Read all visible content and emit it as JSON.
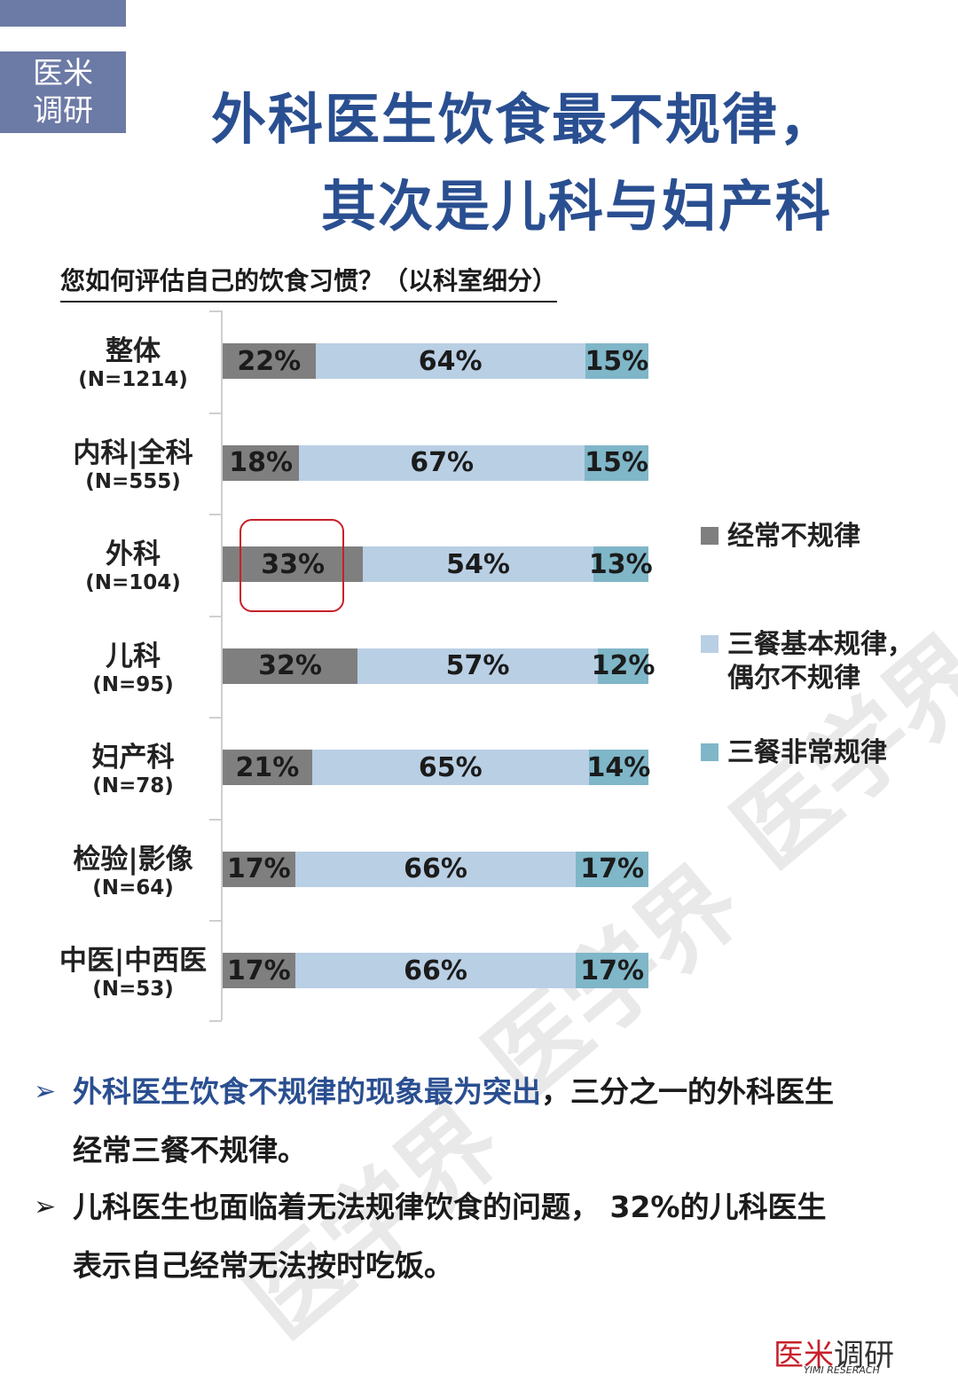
{
  "brand": {
    "line1": "医米",
    "line2": "调研"
  },
  "title": {
    "line1": "外科医生饮食最不规律，",
    "line2": "其次是儿科与妇产科"
  },
  "question": "您如何评估自己的饮食习惯？（以科室细分）",
  "chart_data": {
    "type": "bar",
    "orientation": "horizontal",
    "stacked": true,
    "normalized": true,
    "categories": [
      "整体",
      "内科|全科",
      "外科",
      "儿科",
      "妇产科",
      "检验|影像",
      "中医|中西医"
    ],
    "sample_sizes": [
      "(N=1214)",
      "(N=555)",
      "(N=104)",
      "(N=95)",
      "(N=78)",
      "(N=64)",
      "(N=53)"
    ],
    "series": [
      {
        "name": "经常不规律",
        "values": [
          22,
          18,
          33,
          32,
          21,
          17,
          17
        ],
        "color": "#7f7f7f"
      },
      {
        "name": "三餐基本规律，偶尔不规律",
        "values": [
          64,
          67,
          54,
          57,
          65,
          66,
          66
        ],
        "color": "#b9cfe4"
      },
      {
        "name": "三餐非常规律",
        "values": [
          15,
          15,
          13,
          12,
          14,
          17,
          17
        ],
        "color": "#7fb6c8"
      }
    ],
    "value_labels": [
      [
        "22%",
        "64%",
        "15%"
      ],
      [
        "18%",
        "67%",
        "15%"
      ],
      [
        "33%",
        "54%",
        "13%"
      ],
      [
        "32%",
        "57%",
        "12%"
      ],
      [
        "21%",
        "65%",
        "14%"
      ],
      [
        "17%",
        "66%",
        "17%"
      ],
      [
        "17%",
        "66%",
        "17%"
      ]
    ],
    "highlight": {
      "category": "外科",
      "series": "经常不规律",
      "color": "#c8202a"
    },
    "legend": {
      "placement": "right",
      "items": [
        {
          "line1": "经常不规律",
          "line2": "",
          "color": "#7f7f7f"
        },
        {
          "line1": "三餐基本规律，",
          "line2": "偶尔不规律",
          "color": "#b9cfe4"
        },
        {
          "line1": "三餐非常规律",
          "line2": "",
          "color": "#7fb6c8"
        }
      ]
    },
    "xlim": [
      0,
      100
    ],
    "grid": false
  },
  "bullets": [
    {
      "arrow": "➢",
      "highlight": "外科医生饮食不规律的现象最为突出",
      "rest_line1": "，三分之一的外科医生",
      "line2": "经常三餐不规律。"
    },
    {
      "arrow": "➢",
      "line1": "儿科医生也面临着无法规律饮食的问题， 32%的儿科医生",
      "line2": "表示自己经常无法按时吃饭。"
    }
  ],
  "watermark": "医学界",
  "footer": {
    "red": "医米",
    "dark": "调研",
    "sub": "YIMI RESERACH"
  },
  "colors": {
    "title": "#2a4f91",
    "brand_box": "#6c7aa6",
    "highlight_red": "#c8202a"
  }
}
